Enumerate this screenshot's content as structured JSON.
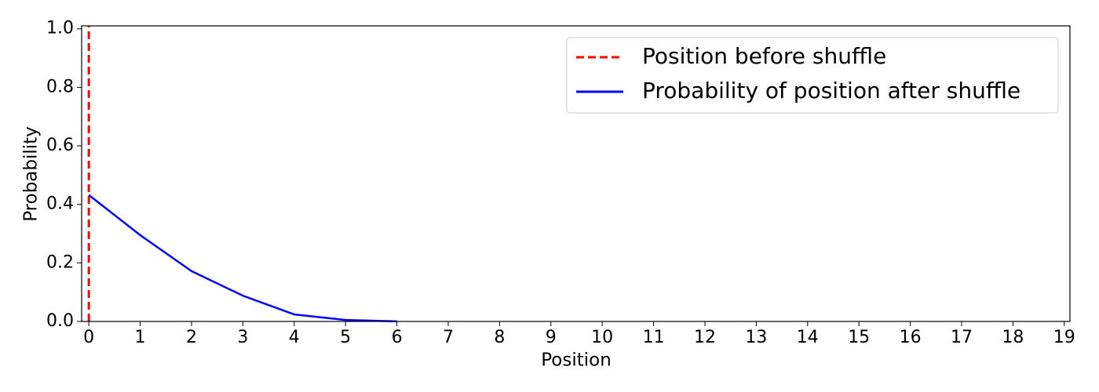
{
  "chart_data": {
    "type": "line",
    "x_label": "Position",
    "y_label": "Probability",
    "xlim": [
      -0.14,
      19.11
    ],
    "ylim": [
      0,
      1.01
    ],
    "xticks": [
      0,
      1,
      2,
      3,
      4,
      5,
      6,
      7,
      8,
      9,
      10,
      11,
      12,
      13,
      14,
      15,
      16,
      17,
      18,
      19
    ],
    "yticks": [
      {
        "value": 0,
        "label": "0.0"
      },
      {
        "value": 0.2,
        "label": "0.2"
      },
      {
        "value": 0.4,
        "label": "0.4"
      },
      {
        "value": 0.6,
        "label": "0.6"
      },
      {
        "value": 0.8,
        "label": "0.8"
      },
      {
        "value": 1,
        "label": "1.0"
      }
    ],
    "legend": "upper right",
    "vline": {
      "name": "Position before shuffle",
      "color": "#ff0000",
      "style": "dashed",
      "x": 0
    },
    "series": [
      {
        "name": "Probability of position after shuffle",
        "color": "#0000ff",
        "x": [
          0,
          1,
          2,
          3,
          4,
          5,
          6
        ],
        "values": [
          0.432,
          0.295,
          0.172,
          0.088,
          0.024,
          0.005,
          0.0005
        ]
      }
    ]
  }
}
